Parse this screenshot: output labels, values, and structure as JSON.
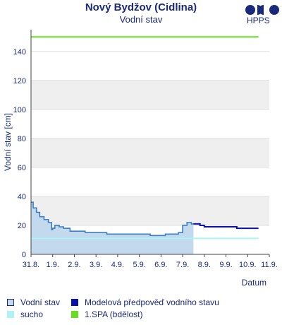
{
  "header": {
    "title": "Nový Bydžov (Cidlina)",
    "subtitle": "Vodní stav",
    "logo_text": "HPPS"
  },
  "chart_data": {
    "type": "line",
    "title": "Nový Bydžov (Cidlina)",
    "subtitle": "Vodní stav",
    "xlabel": "Datum",
    "ylabel": "Vodní stav [cm]",
    "x_ticks": [
      "31.8.",
      "1.9.",
      "2.9.",
      "3.9.",
      "4.9.",
      "5.9.",
      "6.9.",
      "7.9.",
      "8.9.",
      "9.9.",
      "10.9.",
      "11.9."
    ],
    "xlim": [
      0,
      11
    ],
    "ylim": [
      0,
      155
    ],
    "y_ticks": [
      0,
      20,
      40,
      60,
      80,
      100,
      120,
      140
    ],
    "banded_background": true,
    "series": [
      {
        "name": "Vodní stav",
        "color": "#3a7fc1",
        "fill": "#c3d9ee",
        "x": [
          0,
          0.1,
          0.25,
          0.4,
          0.6,
          0.8,
          0.95,
          1.0,
          1.1,
          1.3,
          1.5,
          1.8,
          2.0,
          2.5,
          3.0,
          3.5,
          4.0,
          4.5,
          5.0,
          5.5,
          5.8,
          6.0,
          6.2,
          6.6,
          6.8,
          7.0,
          7.2,
          7.4,
          7.5
        ],
        "values": [
          36,
          32,
          29,
          26,
          24,
          22,
          17,
          18,
          20,
          19,
          18,
          16,
          16,
          15,
          15,
          14,
          14,
          14,
          14,
          13,
          13,
          13,
          14,
          14,
          15,
          20,
          22,
          21,
          21
        ]
      },
      {
        "name": "Modelová předpověď vodního stavu",
        "color": "#0a10b0",
        "x": [
          7.5,
          7.8,
          8.0,
          8.5,
          9.0,
          9.5,
          10.0,
          10.5
        ],
        "values": [
          21,
          20,
          19,
          19,
          19,
          18,
          18,
          18
        ]
      },
      {
        "name": "sucho",
        "color": "#aef2f5",
        "x": [
          0,
          10.5
        ],
        "values": [
          11,
          11
        ]
      },
      {
        "name": "1.SPA (bdělost)",
        "color": "#66dd22",
        "x": [
          0,
          10.5
        ],
        "values": [
          150,
          150
        ]
      }
    ]
  },
  "legend": [
    {
      "label": "Vodní stav",
      "color": "#c3d9ee",
      "border": "#1a2a7a"
    },
    {
      "label": "Modelová předpověď vodního stavu",
      "color": "#0a10b0",
      "border": "#0a10b0"
    },
    {
      "label": "sucho",
      "color": "#aef2f5",
      "border": "#aef2f5"
    },
    {
      "label": "1.SPA (bdělost)",
      "color": "#66dd22",
      "border": "#66dd22"
    }
  ]
}
